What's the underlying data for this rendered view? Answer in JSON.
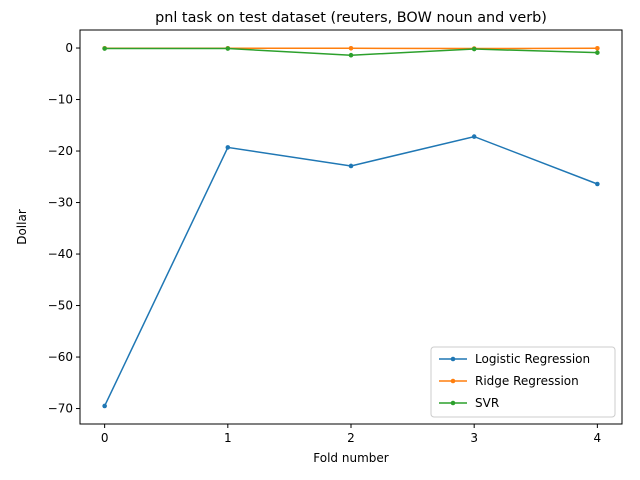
{
  "chart_data": {
    "type": "line",
    "title": "pnl task on test dataset (reuters, BOW noun and verb)",
    "xlabel": "Fold number",
    "ylabel": "Dollar",
    "x": [
      0,
      1,
      2,
      3,
      4
    ],
    "xlim": [
      -0.2,
      4.2
    ],
    "ylim": [
      -73,
      3.5
    ],
    "xticks": [
      "0",
      "1",
      "2",
      "3",
      "4"
    ],
    "yticks": [
      0,
      -10,
      -20,
      -30,
      -40,
      -50,
      -60,
      -70
    ],
    "ytick_labels": [
      "0",
      "−10",
      "−20",
      "−30",
      "−40",
      "−50",
      "−60",
      "−70"
    ],
    "grid": false,
    "legend_position": "lower-right",
    "series": [
      {
        "name": "Logistic Regression",
        "color": "#1f77b4",
        "values": [
          -69.5,
          -19.3,
          -22.9,
          -17.2,
          -26.4
        ]
      },
      {
        "name": "Ridge Regression",
        "color": "#ff7f0e",
        "values": [
          -0.05,
          -0.05,
          -0.05,
          -0.1,
          -0.05
        ]
      },
      {
        "name": "SVR",
        "color": "#2ca02c",
        "values": [
          -0.1,
          -0.1,
          -1.4,
          -0.2,
          -0.9
        ]
      }
    ]
  }
}
